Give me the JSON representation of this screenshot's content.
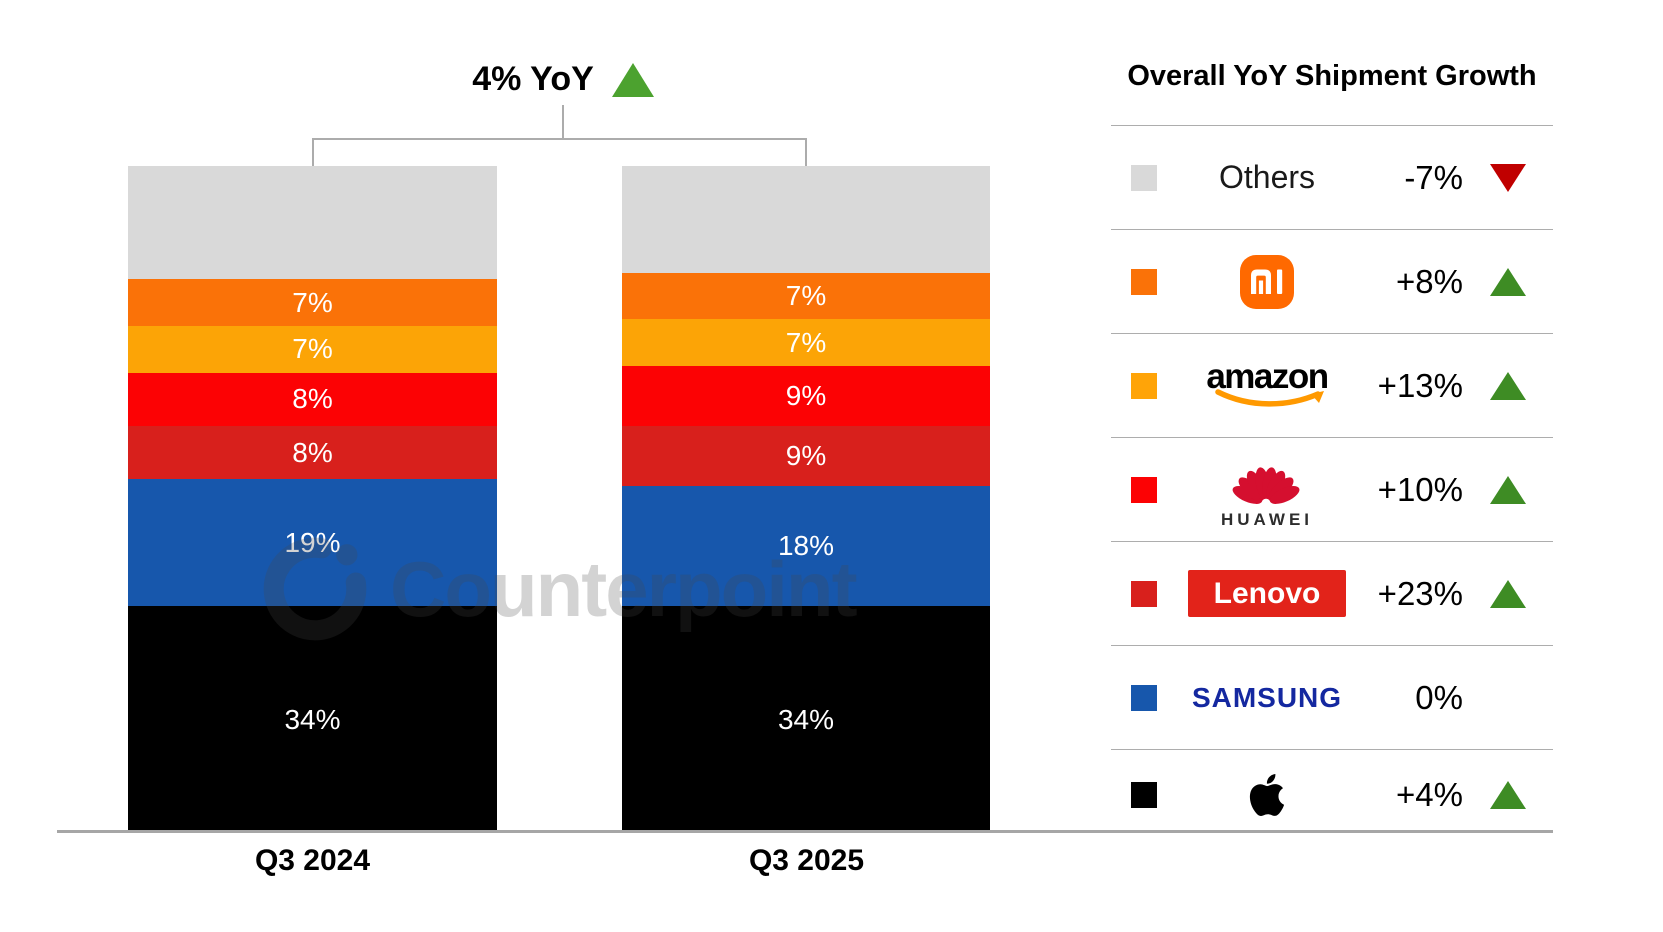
{
  "title": {
    "text": "4% YoY",
    "direction": "up",
    "triangle_color": "#4CA22F"
  },
  "watermark": {
    "text": "Counterpoint"
  },
  "chart_data": {
    "type": "bar",
    "stacked": true,
    "unit": "% shipment share",
    "categories": [
      "Q3 2024",
      "Q3 2025"
    ],
    "stack_order": "top-to-bottom",
    "series": [
      {
        "id": "others",
        "name": "Others",
        "color": "#D9D9D9",
        "values": [
          17,
          16
        ],
        "labels": [
          "",
          ""
        ]
      },
      {
        "id": "xiaomi",
        "name": "Xiaomi",
        "color": "#FA7208",
        "values": [
          7,
          7
        ],
        "labels": [
          "7%",
          "7%"
        ]
      },
      {
        "id": "amazon",
        "name": "Amazon",
        "color": "#FCA406",
        "values": [
          7,
          7
        ],
        "labels": [
          "7%",
          "7%"
        ]
      },
      {
        "id": "huawei",
        "name": "Huawei",
        "color": "#FC0204",
        "values": [
          8,
          9
        ],
        "labels": [
          "8%",
          "9%"
        ]
      },
      {
        "id": "lenovo",
        "name": "Lenovo",
        "color": "#D8201C",
        "values": [
          8,
          9
        ],
        "labels": [
          "8%",
          "9%"
        ]
      },
      {
        "id": "samsung",
        "name": "Samsung",
        "color": "#1757AC",
        "values": [
          19,
          18
        ],
        "labels": [
          "19%",
          "18%"
        ]
      },
      {
        "id": "apple",
        "name": "Apple",
        "color": "#000000",
        "values": [
          34,
          34
        ],
        "labels": [
          "34%",
          "34%"
        ]
      }
    ],
    "overall_yoy_growth": "4%",
    "ylim": [
      0,
      100
    ],
    "grid": false,
    "legend_position": "right"
  },
  "legend": {
    "header": "Overall YoY Shipment Growth",
    "rows": [
      {
        "id": "others",
        "brand": "Others",
        "logo": "text",
        "wordmark": "Others",
        "growth": "-7%",
        "direction": "down",
        "swatch": "#D9D9D9"
      },
      {
        "id": "xiaomi",
        "brand": "Xiaomi",
        "logo": "mi",
        "wordmark": "MI",
        "growth": "+8%",
        "direction": "up",
        "swatch": "#FA7208"
      },
      {
        "id": "amazon",
        "brand": "Amazon",
        "logo": "amazon",
        "wordmark": "amazon",
        "growth": "+13%",
        "direction": "up",
        "swatch": "#FFA408"
      },
      {
        "id": "huawei",
        "brand": "Huawei",
        "logo": "huawei",
        "wordmark": "HUAWEI",
        "growth": "+10%",
        "direction": "up",
        "swatch": "#FC0204"
      },
      {
        "id": "lenovo",
        "brand": "Lenovo",
        "logo": "lenovo",
        "wordmark": "Lenovo",
        "growth": "+23%",
        "direction": "up",
        "swatch": "#D8201C"
      },
      {
        "id": "samsung",
        "brand": "Samsung",
        "logo": "samsung",
        "wordmark": "SAMSUNG",
        "growth": "0%",
        "direction": "none",
        "swatch": "#1757AC"
      },
      {
        "id": "apple",
        "brand": "Apple",
        "logo": "apple",
        "wordmark": "",
        "growth": "+4%",
        "direction": "up",
        "swatch": "#000000"
      }
    ],
    "colors": {
      "up_triangle": "#3E8C24",
      "down_triangle": "#C00000",
      "divider": "#ADADAD"
    }
  }
}
